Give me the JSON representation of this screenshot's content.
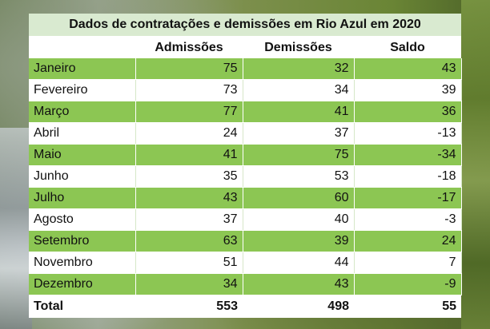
{
  "table": {
    "title": "Dados de contratações e demissões em Rio Azul em 2020",
    "headers": [
      "",
      "Admissões",
      "Demissões",
      "Saldo"
    ],
    "rows": [
      {
        "month": "Janeiro",
        "admissoes": "75",
        "demissoes": "32",
        "saldo": "43"
      },
      {
        "month": "Fevereiro",
        "admissoes": "73",
        "demissoes": "34",
        "saldo": "39"
      },
      {
        "month": "Março",
        "admissoes": "77",
        "demissoes": "41",
        "saldo": "36"
      },
      {
        "month": "Abril",
        "admissoes": "24",
        "demissoes": "37",
        "saldo": "-13"
      },
      {
        "month": "Maio",
        "admissoes": "41",
        "demissoes": "75",
        "saldo": "-34"
      },
      {
        "month": "Junho",
        "admissoes": "35",
        "demissoes": "53",
        "saldo": "-18"
      },
      {
        "month": "Julho",
        "admissoes": "43",
        "demissoes": "60",
        "saldo": "-17"
      },
      {
        "month": "Agosto",
        "admissoes": "37",
        "demissoes": "40",
        "saldo": "-3"
      },
      {
        "month": "Setembro",
        "admissoes": "63",
        "demissoes": "39",
        "saldo": "24"
      },
      {
        "month": "Novembro",
        "admissoes": "51",
        "demissoes": "44",
        "saldo": "7"
      },
      {
        "month": "Dezembro",
        "admissoes": "34",
        "demissoes": "43",
        "saldo": "-9"
      }
    ],
    "total": {
      "label": "Total",
      "admissoes": "553",
      "demissoes": "498",
      "saldo": "55"
    }
  },
  "colors": {
    "row_green": "#8cc653",
    "title_band": "#d9ead0"
  }
}
